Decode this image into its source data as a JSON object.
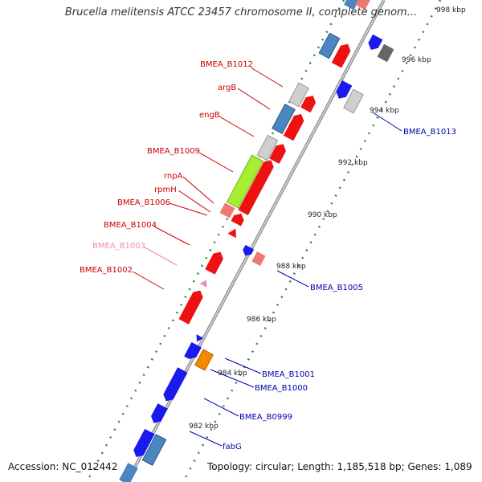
{
  "title": "Brucella melitensis ATCC 23457 chromosome II, complete genom...",
  "accession_label": "Accession: NC_012442",
  "summary_label": "Topology: circular; Length: 1,185,518 bp; Genes: 1,089",
  "colors": {
    "red_gene": "#ee1111",
    "blue_gene": "#1a1aee",
    "steelblue_gene": "#4a86c0",
    "lightgray_gene": "#cfcfcf",
    "darkgray_gene": "#666666",
    "green_gene": "#a6ee33",
    "orange_gene": "#f08800",
    "pink_gene": "#ee7777",
    "label_red": "#cc0000",
    "label_blue": "#0000aa",
    "label_pink": "#ee88bb",
    "ruler_dots": "#2e8b2e"
  },
  "ticks": [
    "998 kbp",
    "996 kbp",
    "994 kbp",
    "992 kbp",
    "990 kbp",
    "988 kbp",
    "986 kbp",
    "984 kbp",
    "982 kbp"
  ],
  "labels_left": [
    {
      "text": "BMEA_B1012",
      "color": "#cc0000"
    },
    {
      "text": "argB",
      "color": "#cc0000"
    },
    {
      "text": "engB",
      "color": "#cc0000"
    },
    {
      "text": "BMEA_B1009",
      "color": "#cc0000"
    },
    {
      "text": "rnpA",
      "color": "#cc0000"
    },
    {
      "text": "rpmH",
      "color": "#cc0000"
    },
    {
      "text": "BMEA_B1006",
      "color": "#cc0000"
    },
    {
      "text": "BMEA_B1004",
      "color": "#cc0000"
    },
    {
      "text": "BMEA_B1003",
      "color": "#ee88bb"
    },
    {
      "text": "BMEA_B1002",
      "color": "#cc0000"
    }
  ],
  "labels_right": [
    {
      "text": "BMEA_B1013",
      "color": "#0000aa"
    },
    {
      "text": "BMEA_B1005",
      "color": "#0000aa"
    },
    {
      "text": "BMEA_B1001",
      "color": "#0000aa"
    },
    {
      "text": "BMEA_B1000",
      "color": "#0000aa"
    },
    {
      "text": "BMEA_B0999",
      "color": "#0000aa"
    },
    {
      "text": "fabG",
      "color": "#0000aa"
    }
  ]
}
